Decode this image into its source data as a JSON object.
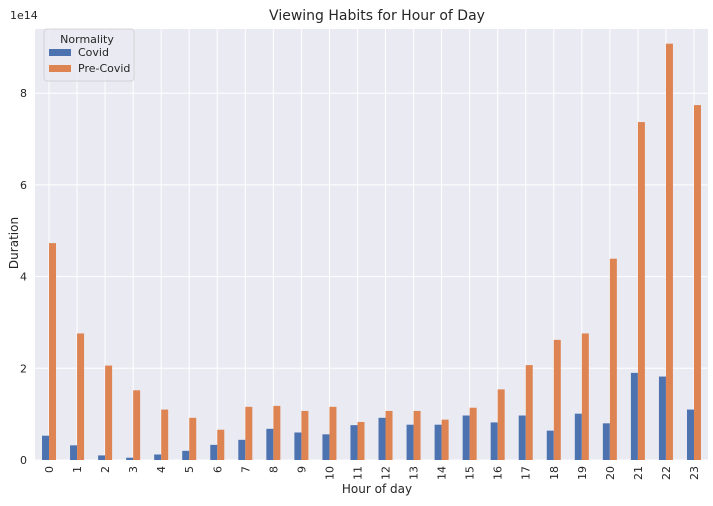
{
  "chart_data": {
    "type": "bar",
    "title": "Viewing Habits for Hour of Day",
    "xlabel": "Hour of day",
    "ylabel": "Duration",
    "y_offset_label": "1e14",
    "y_scale": 100000000000000.0,
    "ylim": [
      0,
      9.4
    ],
    "y_ticks": [
      0,
      2,
      4,
      6,
      8
    ],
    "grid": true,
    "legend_title": "Normality",
    "legend_position": "top-left",
    "categories": [
      "0",
      "1",
      "2",
      "3",
      "4",
      "5",
      "6",
      "7",
      "8",
      "9",
      "10",
      "11",
      "12",
      "13",
      "14",
      "15",
      "16",
      "17",
      "18",
      "19",
      "20",
      "21",
      "22",
      "23"
    ],
    "series": [
      {
        "name": "Covid",
        "color": "#4c72b0",
        "values": [
          0.53,
          0.32,
          0.1,
          0.05,
          0.12,
          0.2,
          0.33,
          0.44,
          0.68,
          0.6,
          0.56,
          0.76,
          0.92,
          0.77,
          0.77,
          0.97,
          0.82,
          0.97,
          0.64,
          1.01,
          0.8,
          1.9,
          1.82,
          1.1
        ]
      },
      {
        "name": "Pre-Covid",
        "color": "#dd8452",
        "values": [
          4.73,
          2.76,
          2.06,
          1.52,
          1.1,
          0.92,
          0.66,
          1.16,
          1.18,
          1.07,
          1.16,
          0.83,
          1.07,
          1.07,
          0.88,
          1.14,
          1.54,
          2.07,
          2.62,
          2.76,
          4.39,
          7.37,
          9.08,
          7.74
        ]
      }
    ]
  },
  "colors": {
    "plot_background": "#eaeaf2",
    "grid": "#ffffff",
    "text": "#262626"
  }
}
